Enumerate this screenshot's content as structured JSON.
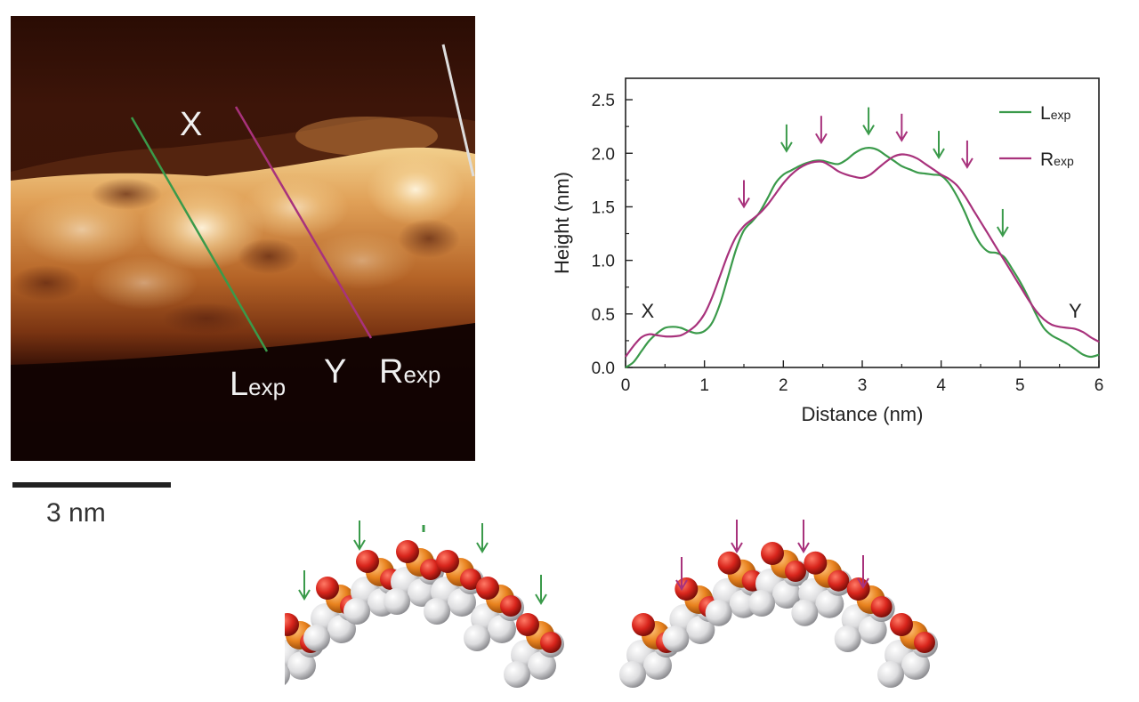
{
  "afm_image": {
    "line_left_label": "L",
    "line_left_sub": "exp",
    "line_right_label": "R",
    "line_right_sub": "exp",
    "point_start": "X",
    "point_end": "Y",
    "scale_bar_label": "3 nm"
  },
  "colors": {
    "lexp": "#3a9a4a",
    "rexp": "#a8327c",
    "phosphorus": "#e8821e",
    "oxygen": "#d8251c",
    "atom_white": "#e8e8ea"
  },
  "chart_data": {
    "type": "line",
    "xlabel": "Distance (nm)",
    "ylabel": "Height (nm)",
    "xlim": [
      0,
      6
    ],
    "ylim": [
      0,
      2.7
    ],
    "xticks": [
      "0",
      "1",
      "2",
      "3",
      "4",
      "5",
      "6"
    ],
    "yticks": [
      "0.0",
      "0.5",
      "1.0",
      "1.5",
      "2.0",
      "2.5"
    ],
    "point_labels": [
      {
        "text": "X",
        "x": 0.28,
        "y": 0.5
      },
      {
        "text": "Y",
        "x": 5.7,
        "y": 0.5
      }
    ],
    "series": [
      {
        "name": "L",
        "name_sub": "exp",
        "color": "#3a9a4a",
        "x": [
          0,
          0.1,
          0.2,
          0.3,
          0.4,
          0.5,
          0.6,
          0.7,
          0.8,
          0.9,
          1.0,
          1.1,
          1.2,
          1.3,
          1.4,
          1.5,
          1.6,
          1.7,
          1.8,
          1.9,
          2.0,
          2.1,
          2.2,
          2.3,
          2.4,
          2.5,
          2.6,
          2.7,
          2.8,
          2.9,
          3.0,
          3.1,
          3.2,
          3.3,
          3.4,
          3.5,
          3.6,
          3.7,
          3.8,
          3.9,
          4.0,
          4.1,
          4.2,
          4.3,
          4.4,
          4.5,
          4.6,
          4.7,
          4.8,
          4.9,
          5.0,
          5.1,
          5.2,
          5.3,
          5.4,
          5.5,
          5.6,
          5.7,
          5.8,
          5.9,
          6.0
        ],
        "y": [
          0.0,
          0.05,
          0.15,
          0.25,
          0.32,
          0.37,
          0.38,
          0.37,
          0.34,
          0.32,
          0.34,
          0.42,
          0.6,
          0.85,
          1.1,
          1.28,
          1.36,
          1.45,
          1.58,
          1.72,
          1.8,
          1.84,
          1.88,
          1.91,
          1.93,
          1.93,
          1.91,
          1.9,
          1.94,
          2.0,
          2.04,
          2.05,
          2.03,
          1.98,
          1.93,
          1.88,
          1.85,
          1.82,
          1.81,
          1.8,
          1.79,
          1.72,
          1.6,
          1.45,
          1.28,
          1.15,
          1.08,
          1.07,
          1.03,
          0.92,
          0.8,
          0.66,
          0.5,
          0.37,
          0.3,
          0.26,
          0.22,
          0.17,
          0.12,
          0.1,
          0.12
        ]
      },
      {
        "name": "R",
        "name_sub": "exp",
        "color": "#a8327c",
        "x": [
          0,
          0.1,
          0.2,
          0.3,
          0.4,
          0.5,
          0.6,
          0.7,
          0.8,
          0.9,
          1.0,
          1.1,
          1.2,
          1.3,
          1.4,
          1.5,
          1.6,
          1.7,
          1.8,
          1.9,
          2.0,
          2.1,
          2.2,
          2.3,
          2.4,
          2.5,
          2.6,
          2.7,
          2.8,
          2.9,
          3.0,
          3.1,
          3.2,
          3.3,
          3.4,
          3.5,
          3.6,
          3.7,
          3.8,
          3.9,
          4.0,
          4.1,
          4.2,
          4.3,
          4.4,
          4.5,
          4.6,
          4.7,
          4.8,
          4.9,
          5.0,
          5.1,
          5.2,
          5.3,
          5.4,
          5.5,
          5.6,
          5.7,
          5.8,
          5.9,
          6.0
        ],
        "y": [
          0.1,
          0.2,
          0.28,
          0.31,
          0.3,
          0.29,
          0.29,
          0.3,
          0.34,
          0.4,
          0.5,
          0.66,
          0.86,
          1.06,
          1.22,
          1.32,
          1.38,
          1.44,
          1.52,
          1.62,
          1.72,
          1.8,
          1.86,
          1.9,
          1.92,
          1.92,
          1.88,
          1.83,
          1.8,
          1.78,
          1.77,
          1.8,
          1.86,
          1.92,
          1.97,
          1.99,
          1.98,
          1.95,
          1.9,
          1.85,
          1.8,
          1.76,
          1.7,
          1.6,
          1.48,
          1.36,
          1.24,
          1.12,
          1.0,
          0.88,
          0.76,
          0.64,
          0.53,
          0.45,
          0.4,
          0.38,
          0.37,
          0.36,
          0.33,
          0.28,
          0.24
        ]
      }
    ],
    "annotations": [
      {
        "type": "arrow",
        "series": "L",
        "x": 2.04,
        "y": 2.02
      },
      {
        "type": "arrow",
        "series": "L",
        "x": 3.08,
        "y": 2.18
      },
      {
        "type": "arrow",
        "series": "L",
        "x": 3.97,
        "y": 1.96
      },
      {
        "type": "arrow",
        "series": "L",
        "x": 4.78,
        "y": 1.23
      },
      {
        "type": "arrow",
        "series": "R",
        "x": 1.5,
        "y": 1.5
      },
      {
        "type": "arrow",
        "series": "R",
        "x": 2.48,
        "y": 2.1
      },
      {
        "type": "arrow",
        "series": "R",
        "x": 3.5,
        "y": 2.12
      },
      {
        "type": "arrow",
        "series": "R",
        "x": 4.33,
        "y": 1.87
      }
    ]
  }
}
